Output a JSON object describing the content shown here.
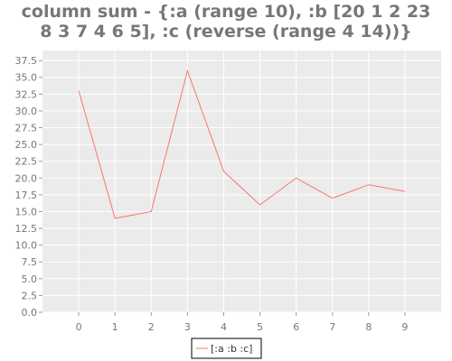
{
  "chart_data": {
    "type": "line",
    "title_lines": [
      "column sum - {:a (range 10), :b [20 1 2 23",
      "8 3 7 4 6 5], :c (reverse (range 4 14))}"
    ],
    "x": [
      0,
      1,
      2,
      3,
      4,
      5,
      6,
      7,
      8,
      9
    ],
    "series": [
      {
        "name": "[:a :b :c]",
        "values": [
          33,
          14,
          15,
          36,
          21,
          16,
          20,
          17,
          19,
          18
        ],
        "color": "#f8766d"
      }
    ],
    "xlim": [
      -1,
      10
    ],
    "ylim": [
      0,
      39
    ],
    "y_ticks": [
      "0.0",
      "2.5",
      "5.0",
      "7.5",
      "10.0",
      "12.5",
      "15.0",
      "17.5",
      "20.0",
      "22.5",
      "25.0",
      "27.5",
      "30.0",
      "32.5",
      "35.0",
      "37.5"
    ],
    "x_ticks": [
      "0",
      "1",
      "2",
      "3",
      "4",
      "5",
      "6",
      "7",
      "8",
      "9"
    ],
    "grid": true,
    "legend_placement": "bottom-center",
    "colors": {
      "panel_background": "#ebebeb",
      "grid": "#ffffff",
      "tick_text": "#777777",
      "title_text": "#777777"
    }
  }
}
